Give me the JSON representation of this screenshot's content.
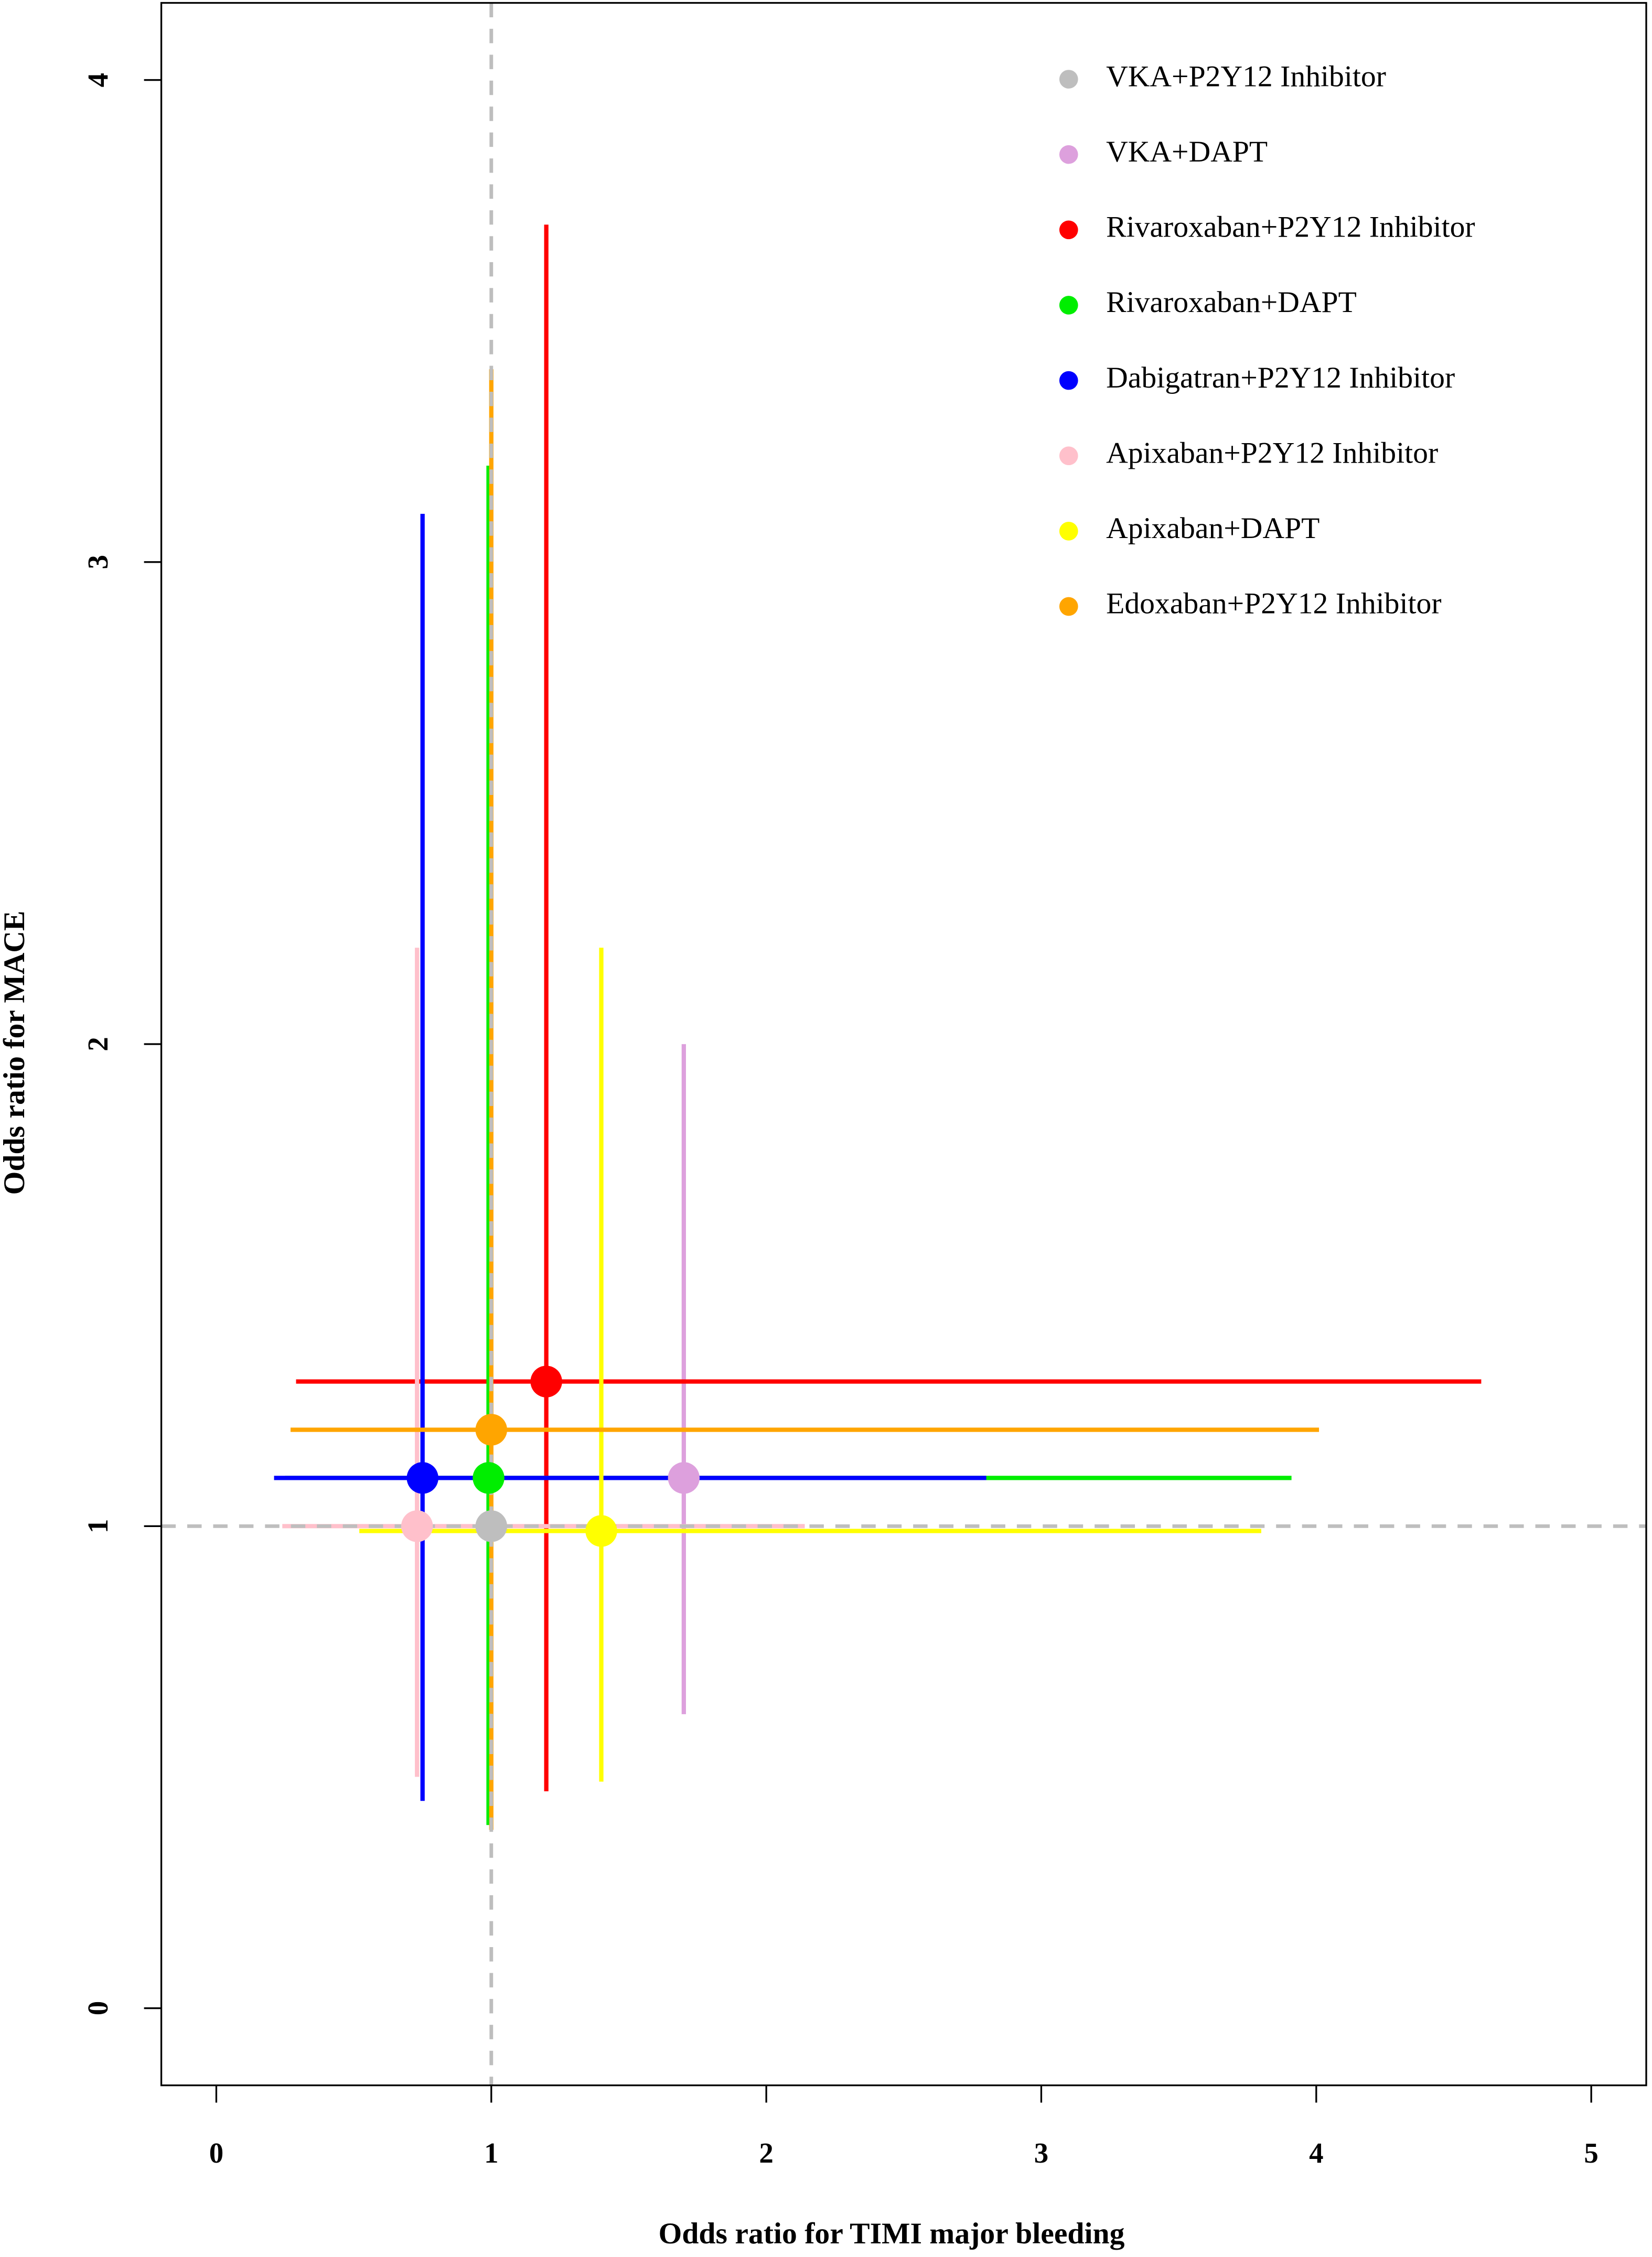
{
  "chart_data": {
    "type": "scatter",
    "x_label": "Odds ratio for TIMI major bleeding",
    "y_label": "Odds ratio for MACE",
    "xlim": [
      -0.2,
      5.2
    ],
    "ylim": [
      -0.16,
      4.16
    ],
    "xticks": [
      0,
      1,
      2,
      3,
      4,
      5
    ],
    "yticks": [
      0,
      1,
      2,
      3,
      4
    ],
    "reference_lines": {
      "x": 1,
      "y": 1
    },
    "legend": "top-right",
    "series": [
      {
        "name": "VKA+P2Y12 Inhibitor",
        "color": "#bebebe",
        "x": 1.0,
        "y": 1.0,
        "xlow": null,
        "xhigh": null,
        "ylow": null,
        "yhigh": null
      },
      {
        "name": "VKA+DAPT",
        "color": "#dda0dd",
        "x": 1.7,
        "y": 1.1,
        "xlow": null,
        "xhigh": null,
        "ylow": 0.61,
        "yhigh": 2.0
      },
      {
        "name": "Rivaroxaban+P2Y12 Inhibitor",
        "color": "#ff0000",
        "x": 1.2,
        "y": 1.3,
        "xlow": 0.29,
        "xhigh": 4.6,
        "ylow": 0.45,
        "yhigh": 3.7
      },
      {
        "name": "Rivaroxaban+DAPT",
        "color": "#00ee00",
        "x": 0.99,
        "y": 1.1,
        "xlow": 0.25,
        "xhigh": 3.91,
        "ylow": 0.38,
        "yhigh": 3.2
      },
      {
        "name": "Dabigatran+P2Y12 Inhibitor",
        "color": "#0000ff",
        "x": 0.75,
        "y": 1.1,
        "xlow": 0.21,
        "xhigh": 2.8,
        "ylow": 0.43,
        "yhigh": 3.1
      },
      {
        "name": "Apixaban+P2Y12 Inhibitor",
        "color": "#ffc0cb",
        "x": 0.73,
        "y": 1.0,
        "xlow": 0.24,
        "xhigh": 2.14,
        "ylow": 0.48,
        "yhigh": 2.2
      },
      {
        "name": "Apixaban+DAPT",
        "color": "#ffff00",
        "x": 1.4,
        "y": 0.99,
        "xlow": 0.52,
        "xhigh": 3.8,
        "ylow": 0.47,
        "yhigh": 2.2
      },
      {
        "name": "Edoxaban+P2Y12 Inhibitor",
        "color": "#ffa500",
        "x": 1.0,
        "y": 1.2,
        "xlow": 0.27,
        "xhigh": 4.01,
        "ylow": 0.37,
        "yhigh": 3.4
      }
    ]
  }
}
